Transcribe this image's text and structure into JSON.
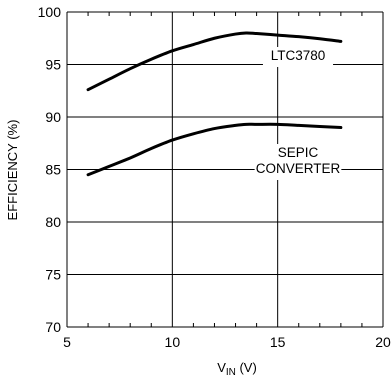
{
  "chart_data": {
    "type": "line",
    "title": "",
    "xlabel": "V",
    "xlabel_sub": "IN",
    "xlabel_unit": " (V)",
    "ylabel": "EFFICIENCY (%)",
    "xlim": [
      5,
      20
    ],
    "ylim": [
      70,
      100
    ],
    "x_ticks": [
      "5",
      "10",
      "15",
      "20"
    ],
    "y_ticks": [
      "100",
      "95",
      "90",
      "85",
      "80",
      "75",
      "70"
    ],
    "grid": true,
    "series": [
      {
        "name": "LTC3780",
        "x": [
          6,
          7,
          8,
          9,
          10,
          11,
          12,
          13,
          13.5,
          14,
          15,
          16,
          17,
          18
        ],
        "y": [
          92.6,
          93.6,
          94.6,
          95.5,
          96.3,
          96.9,
          97.5,
          97.9,
          98.0,
          97.95,
          97.8,
          97.65,
          97.45,
          97.2
        ]
      },
      {
        "name": "SEPIC\nCONVERTER",
        "x": [
          6,
          7,
          8,
          9,
          10,
          11,
          12,
          13,
          13.5,
          14,
          15,
          16,
          17,
          18
        ],
        "y": [
          84.5,
          85.3,
          86.1,
          87.0,
          87.8,
          88.4,
          88.9,
          89.2,
          89.3,
          89.3,
          89.3,
          89.2,
          89.1,
          89.0
        ]
      }
    ]
  }
}
